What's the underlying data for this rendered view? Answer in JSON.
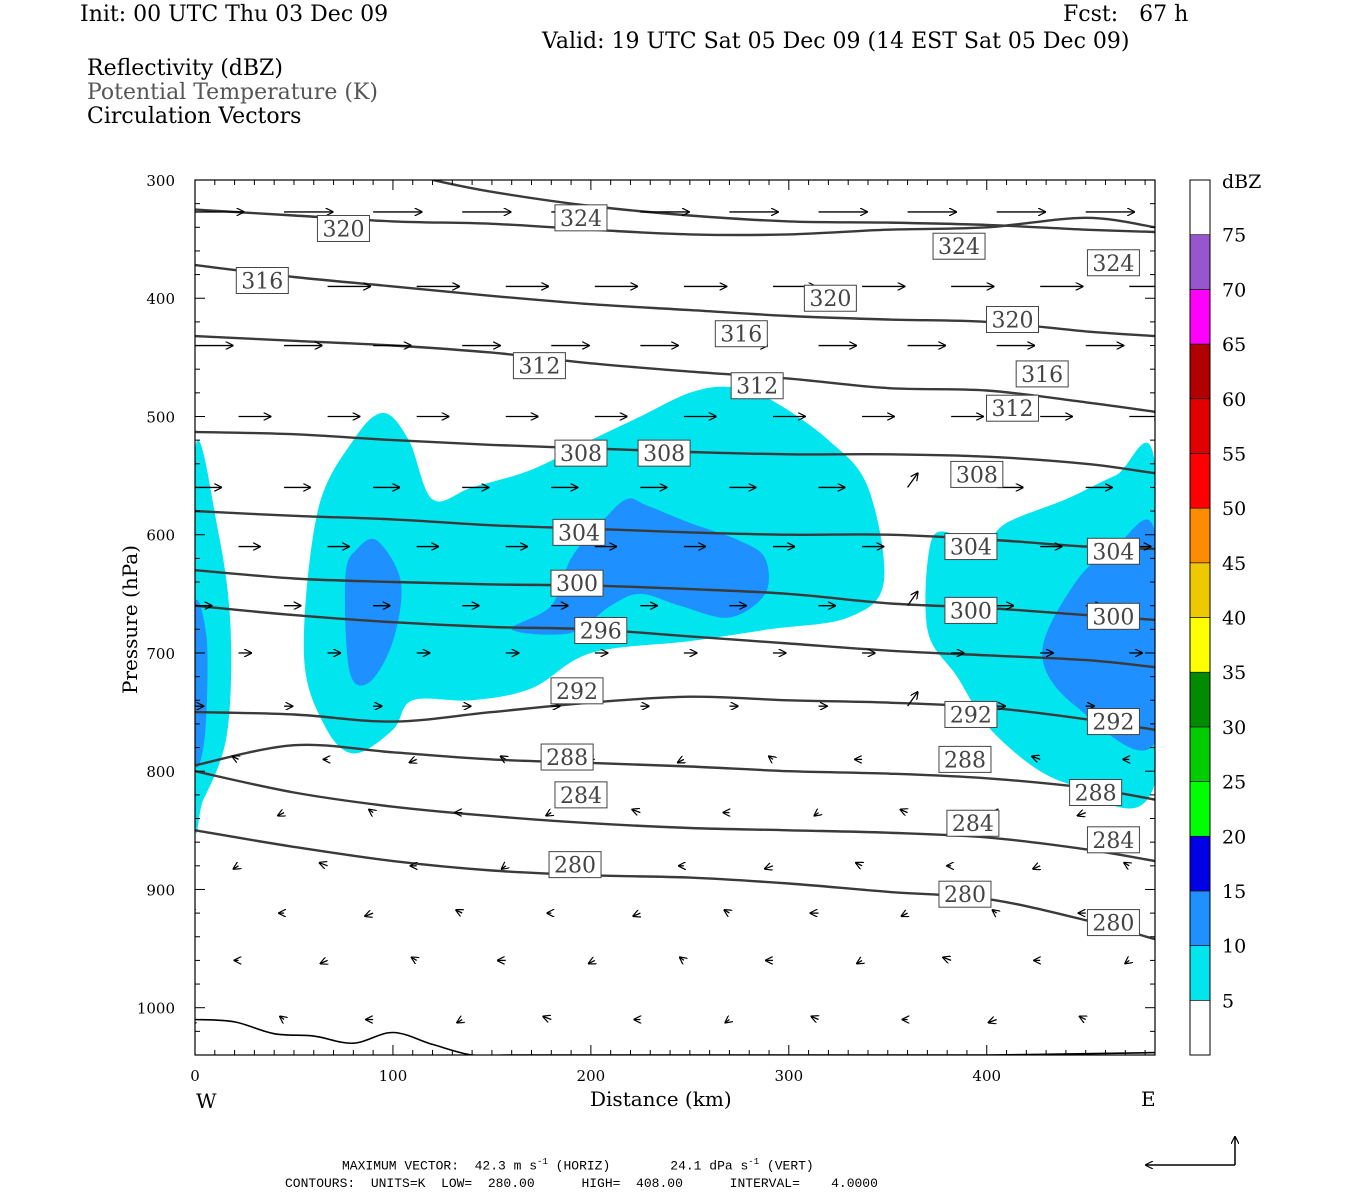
{
  "header": {
    "init": "Init: 00 UTC Thu 03 Dec 09",
    "fcst": "Fcst:   67 h",
    "valid": "Valid: 19 UTC Sat 05 Dec 09 (14 EST Sat 05 Dec 09)",
    "fields": [
      "Reflectivity (dBZ)",
      "Potential Temperature (K)",
      "Circulation Vectors"
    ]
  },
  "axes": {
    "y_label": "Pressure (hPa)",
    "x_label": "Distance (km)",
    "x_ticks": [
      "0",
      "100",
      "200",
      "300",
      "400"
    ],
    "y_ticks": [
      "300",
      "400",
      "500",
      "600",
      "700",
      "800",
      "900",
      "1000"
    ],
    "west": "W",
    "east": "E"
  },
  "colorbar": {
    "title": "dBZ",
    "labels": [
      "5",
      "10",
      "15",
      "20",
      "25",
      "30",
      "35",
      "40",
      "45",
      "50",
      "55",
      "60",
      "65",
      "70",
      "75"
    ],
    "colors": [
      "#00e5ee",
      "#1e90ff",
      "#0000e6",
      "#00ff00",
      "#00cd00",
      "#008b00",
      "#ffff00",
      "#eec900",
      "#ff8c00",
      "#ff0000",
      "#e00000",
      "#b00000",
      "#ff00ff",
      "#9955cc",
      "#ffffff"
    ]
  },
  "footer": {
    "line1_a": "MAXIMUM VECTOR:  42.3 m s",
    "line1_b": " (HORIZ)",
    "line1_c": "24.1 dPa s",
    "line1_d": " (VERT)",
    "exp": "-1",
    "line2": "CONTOURS:  UNITS=K  LOW=  280.00      HIGH=  408.00      INTERVAL=    4.0000"
  },
  "chart_data": {
    "type": "contour-cross-section",
    "title": "Reflectivity (dBZ), Potential Temperature (K), Circulation Vectors",
    "xlabel": "Distance (km)",
    "ylabel": "Pressure (hPa)",
    "xlim": [
      0,
      485
    ],
    "ylim": [
      1040,
      300
    ],
    "theta_contours": [
      {
        "value": 280,
        "points": [
          [
            0,
            850
          ],
          [
            50,
            864
          ],
          [
            100,
            876
          ],
          [
            150,
            884
          ],
          [
            200,
            888
          ],
          [
            250,
            890
          ],
          [
            300,
            895
          ],
          [
            350,
            902
          ],
          [
            400,
            908
          ],
          [
            450,
            926
          ],
          [
            485,
            942
          ]
        ],
        "labels": [
          [
            192,
            879
          ],
          [
            389,
            904
          ],
          [
            464,
            928
          ]
        ]
      },
      {
        "value": 284,
        "points": [
          [
            0,
            800
          ],
          [
            50,
            818
          ],
          [
            100,
            830
          ],
          [
            150,
            838
          ],
          [
            200,
            844
          ],
          [
            250,
            848
          ],
          [
            300,
            850
          ],
          [
            350,
            852
          ],
          [
            400,
            856
          ],
          [
            450,
            866
          ],
          [
            485,
            876
          ]
        ],
        "labels": [
          [
            195,
            820
          ],
          [
            393,
            844
          ],
          [
            464,
            858
          ]
        ]
      },
      {
        "value": 288,
        "points": [
          [
            0,
            795
          ],
          [
            50,
            778
          ],
          [
            100,
            784
          ],
          [
            150,
            790
          ],
          [
            200,
            793
          ],
          [
            250,
            796
          ],
          [
            300,
            800
          ],
          [
            350,
            802
          ],
          [
            400,
            806
          ],
          [
            450,
            814
          ],
          [
            485,
            824
          ]
        ],
        "labels": [
          [
            188,
            788
          ],
          [
            389,
            790
          ],
          [
            455,
            818
          ]
        ]
      },
      {
        "value": 292,
        "points": [
          [
            0,
            750
          ],
          [
            50,
            752
          ],
          [
            100,
            758
          ],
          [
            150,
            750
          ],
          [
            200,
            742
          ],
          [
            250,
            737
          ],
          [
            300,
            740
          ],
          [
            350,
            742
          ],
          [
            400,
            746
          ],
          [
            450,
            756
          ],
          [
            485,
            765
          ]
        ],
        "labels": [
          [
            193,
            732
          ],
          [
            392,
            752
          ],
          [
            464,
            758
          ]
        ]
      },
      {
        "value": 296,
        "points": [
          [
            0,
            660
          ],
          [
            50,
            668
          ],
          [
            100,
            674
          ],
          [
            150,
            678
          ],
          [
            200,
            680
          ],
          [
            250,
            686
          ],
          [
            300,
            692
          ],
          [
            350,
            698
          ],
          [
            400,
            702
          ],
          [
            450,
            706
          ],
          [
            485,
            712
          ]
        ],
        "labels": [
          [
            205,
            681
          ]
        ]
      },
      {
        "value": 300,
        "points": [
          [
            0,
            630
          ],
          [
            50,
            637
          ],
          [
            100,
            640
          ],
          [
            150,
            642
          ],
          [
            200,
            643
          ],
          [
            250,
            646
          ],
          [
            300,
            650
          ],
          [
            350,
            658
          ],
          [
            400,
            662
          ],
          [
            450,
            668
          ],
          [
            485,
            672
          ]
        ],
        "labels": [
          [
            193,
            641
          ],
          [
            392,
            664
          ],
          [
            464,
            669
          ]
        ]
      },
      {
        "value": 304,
        "points": [
          [
            0,
            580
          ],
          [
            50,
            584
          ],
          [
            100,
            587
          ],
          [
            150,
            592
          ],
          [
            200,
            595
          ],
          [
            250,
            598
          ],
          [
            300,
            600
          ],
          [
            350,
            600
          ],
          [
            400,
            604
          ],
          [
            450,
            610
          ],
          [
            485,
            612
          ]
        ],
        "labels": [
          [
            194,
            598
          ],
          [
            392,
            610
          ],
          [
            464,
            614
          ]
        ]
      },
      {
        "value": 308,
        "points": [
          [
            0,
            513
          ],
          [
            50,
            515
          ],
          [
            100,
            520
          ],
          [
            150,
            524
          ],
          [
            200,
            527
          ],
          [
            250,
            530
          ],
          [
            300,
            532
          ],
          [
            350,
            532
          ],
          [
            400,
            534
          ],
          [
            450,
            540
          ],
          [
            485,
            548
          ]
        ],
        "labels": [
          [
            195,
            531
          ],
          [
            237,
            531
          ],
          [
            395,
            549
          ]
        ]
      },
      {
        "value": 312,
        "points": [
          [
            0,
            432
          ],
          [
            50,
            436
          ],
          [
            100,
            440
          ],
          [
            150,
            446
          ],
          [
            200,
            455
          ],
          [
            250,
            462
          ],
          [
            300,
            468
          ],
          [
            350,
            476
          ],
          [
            400,
            478
          ],
          [
            450,
            488
          ],
          [
            485,
            496
          ]
        ],
        "labels": [
          [
            174,
            457
          ],
          [
            284,
            474
          ],
          [
            413,
            493
          ]
        ]
      },
      {
        "value": 316,
        "points": [
          [
            0,
            372
          ],
          [
            50,
            382
          ],
          [
            100,
            390
          ],
          [
            150,
            398
          ],
          [
            200,
            405
          ],
          [
            250,
            410
          ],
          [
            300,
            415
          ],
          [
            350,
            418
          ],
          [
            400,
            420
          ],
          [
            450,
            428
          ],
          [
            485,
            432
          ]
        ],
        "labels": [
          [
            34,
            385
          ],
          [
            276,
            430
          ],
          [
            428,
            464
          ]
        ]
      },
      {
        "value": 320,
        "points": [
          [
            0,
            325
          ],
          [
            50,
            330
          ],
          [
            100,
            335
          ],
          [
            150,
            337
          ],
          [
            200,
            342
          ],
          [
            250,
            346
          ],
          [
            300,
            346
          ],
          [
            350,
            342
          ],
          [
            400,
            340
          ],
          [
            450,
            332
          ],
          [
            485,
            340
          ]
        ],
        "labels": [
          [
            75,
            341
          ],
          [
            321,
            400
          ],
          [
            413,
            418
          ]
        ]
      },
      {
        "value": 324,
        "points": [
          [
            120,
            300
          ],
          [
            150,
            310
          ],
          [
            200,
            322
          ],
          [
            250,
            330
          ],
          [
            300,
            335
          ],
          [
            350,
            336
          ],
          [
            400,
            338
          ],
          [
            450,
            342
          ],
          [
            485,
            344
          ]
        ],
        "labels": [
          [
            195,
            332
          ],
          [
            386,
            356
          ],
          [
            464,
            370
          ]
        ]
      }
    ],
    "surface": [
      [
        0,
        1010
      ],
      [
        20,
        1012
      ],
      [
        40,
        1022
      ],
      [
        60,
        1024
      ],
      [
        80,
        1030
      ],
      [
        100,
        1021
      ],
      [
        120,
        1031
      ],
      [
        140,
        1040
      ],
      [
        160,
        1040
      ],
      [
        200,
        1040
      ],
      [
        300,
        1040
      ],
      [
        400,
        1040
      ],
      [
        485,
        1038
      ]
    ],
    "reflectivity_regions": [
      {
        "dbz": 5,
        "points": [
          [
            0,
            530
          ],
          [
            12,
            600
          ],
          [
            18,
            680
          ],
          [
            16,
            770
          ],
          [
            4,
            825
          ],
          [
            0,
            830
          ]
        ]
      },
      {
        "dbz": 5,
        "points": [
          [
            55,
            700
          ],
          [
            62,
            580
          ],
          [
            80,
            520
          ],
          [
            95,
            497
          ],
          [
            108,
            520
          ],
          [
            120,
            570
          ],
          [
            140,
            560
          ],
          [
            170,
            545
          ],
          [
            200,
            520
          ],
          [
            225,
            500
          ],
          [
            250,
            480
          ],
          [
            270,
            475
          ],
          [
            290,
            485
          ],
          [
            320,
            520
          ],
          [
            340,
            560
          ],
          [
            348,
            640
          ],
          [
            330,
            670
          ],
          [
            290,
            680
          ],
          [
            250,
            690
          ],
          [
            200,
            700
          ],
          [
            170,
            730
          ],
          [
            140,
            740
          ],
          [
            110,
            740
          ],
          [
            100,
            765
          ],
          [
            80,
            785
          ],
          [
            65,
            760
          ]
        ]
      },
      {
        "dbz": 5,
        "points": [
          [
            370,
            680
          ],
          [
            372,
            605
          ],
          [
            385,
            600
          ],
          [
            398,
            610
          ],
          [
            410,
            590
          ],
          [
            440,
            570
          ],
          [
            465,
            550
          ],
          [
            485,
            540
          ],
          [
            485,
            810
          ],
          [
            440,
            810
          ],
          [
            405,
            770
          ],
          [
            385,
            720
          ]
        ]
      },
      {
        "dbz": 10,
        "points": [
          [
            0,
            660
          ],
          [
            6,
            690
          ],
          [
            5,
            770
          ],
          [
            0,
            790
          ]
        ]
      },
      {
        "dbz": 10,
        "points": [
          [
            76,
            635
          ],
          [
            82,
            612
          ],
          [
            92,
            605
          ],
          [
            104,
            640
          ],
          [
            100,
            690
          ],
          [
            88,
            725
          ],
          [
            78,
            715
          ]
        ]
      },
      {
        "dbz": 10,
        "points": [
          [
            160,
            680
          ],
          [
            180,
            660
          ],
          [
            190,
            620
          ],
          [
            205,
            590
          ],
          [
            218,
            570
          ],
          [
            228,
            575
          ],
          [
            250,
            590
          ],
          [
            275,
            605
          ],
          [
            288,
            620
          ],
          [
            288,
            650
          ],
          [
            270,
            670
          ],
          [
            245,
            660
          ],
          [
            225,
            650
          ],
          [
            210,
            660
          ],
          [
            190,
            683
          ]
        ]
      },
      {
        "dbz": 10,
        "points": [
          [
            428,
            700
          ],
          [
            445,
            640
          ],
          [
            465,
            610
          ],
          [
            485,
            598
          ],
          [
            485,
            775
          ],
          [
            445,
            745
          ]
        ]
      }
    ],
    "vectors_sample": [
      {
        "x": 0,
        "p": 327,
        "u": 45,
        "v": 0
      },
      {
        "x": 100,
        "p": 390,
        "u": 40,
        "v": 0
      },
      {
        "x": 250,
        "p": 460,
        "u": 20,
        "v": 0
      },
      {
        "x": 360,
        "p": 540,
        "u": 15,
        "v": 10
      },
      {
        "x": 480,
        "p": 460,
        "u": 45,
        "v": 0
      }
    ],
    "vector_scale": {
      "horiz": "42.3 m s-1",
      "vert": "24.1 dPa s-1"
    }
  }
}
